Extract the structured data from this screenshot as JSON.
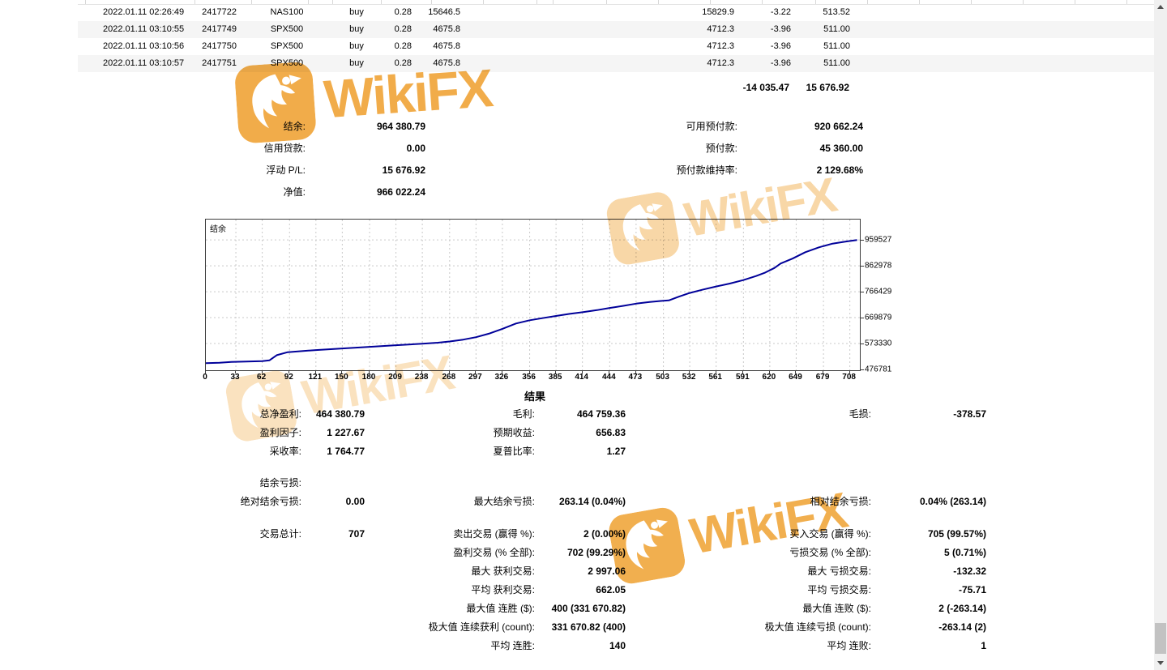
{
  "watermark": {
    "text": "WikiFX",
    "color": "#F0A63C"
  },
  "table": {
    "rows": [
      {
        "time": "2022.01.11 02:26:49",
        "ticket": "2417722",
        "symbol": "NAS100",
        "type": "buy",
        "volume": "0.28",
        "open_price": "15646.5",
        "close_price": "15829.9",
        "swap": "-3.22",
        "profit": "513.52"
      },
      {
        "time": "2022.01.11 03:10:55",
        "ticket": "2417749",
        "symbol": "SPX500",
        "type": "buy",
        "volume": "0.28",
        "open_price": "4675.8",
        "close_price": "4712.3",
        "swap": "-3.96",
        "profit": "511.00"
      },
      {
        "time": "2022.01.11 03:10:56",
        "ticket": "2417750",
        "symbol": "SPX500",
        "type": "buy",
        "volume": "0.28",
        "open_price": "4675.8",
        "close_price": "4712.3",
        "swap": "-3.96",
        "profit": "511.00"
      },
      {
        "time": "2022.01.11 03:10:57",
        "ticket": "2417751",
        "symbol": "SPX500",
        "type": "buy",
        "volume": "0.28",
        "open_price": "4675.8",
        "close_price": "4712.3",
        "swap": "-3.96",
        "profit": "511.00"
      }
    ],
    "totals": {
      "col1": "-14 035.47",
      "col2": "15 676.92"
    }
  },
  "summary": {
    "rows": [
      {
        "left": {
          "label": "结余:",
          "value": "964 380.79"
        },
        "right": {
          "label": "可用预付款:",
          "value": "920 662.24"
        }
      },
      {
        "left": {
          "label": "信用贷款:",
          "value": "0.00"
        },
        "right": {
          "label": "预付款:",
          "value": "45 360.00"
        }
      },
      {
        "left": {
          "label": "浮动 P/L:",
          "value": "15 676.92"
        },
        "right": {
          "label": "预付款维持率:",
          "value": "2 129.68%"
        }
      },
      {
        "left": {
          "label": "净值:",
          "value": "966 022.24"
        }
      }
    ]
  },
  "chart_data": {
    "type": "line",
    "title": "结余",
    "xlabel": "",
    "ylabel": "",
    "legend": "none",
    "grid": true,
    "line_color": "#000099",
    "xlim": [
      0,
      719
    ],
    "ylim": [
      473700,
      1035600
    ],
    "x_ticks": [
      0,
      33,
      62,
      92,
      121,
      150,
      180,
      209,
      238,
      268,
      297,
      326,
      356,
      385,
      414,
      444,
      473,
      503,
      532,
      561,
      591,
      620,
      649,
      679,
      708
    ],
    "y_ticks": [
      959527,
      862978,
      766429,
      669879,
      573330,
      476781
    ],
    "points": [
      [
        0,
        500000
      ],
      [
        15,
        501500
      ],
      [
        28,
        504500
      ],
      [
        45,
        506000
      ],
      [
        62,
        507500
      ],
      [
        70,
        511000
      ],
      [
        78,
        530000
      ],
      [
        90,
        541000
      ],
      [
        121,
        549000
      ],
      [
        150,
        555000
      ],
      [
        180,
        561000
      ],
      [
        209,
        567000
      ],
      [
        238,
        572500
      ],
      [
        255,
        576500
      ],
      [
        268,
        581000
      ],
      [
        283,
        588000
      ],
      [
        297,
        597000
      ],
      [
        311,
        610000
      ],
      [
        326,
        628000
      ],
      [
        341,
        648000
      ],
      [
        356,
        660000
      ],
      [
        370,
        668000
      ],
      [
        385,
        676000
      ],
      [
        400,
        684000
      ],
      [
        414,
        690000
      ],
      [
        430,
        698000
      ],
      [
        444,
        706000
      ],
      [
        459,
        714000
      ],
      [
        473,
        722000
      ],
      [
        488,
        728000
      ],
      [
        500,
        732000
      ],
      [
        509,
        734000
      ],
      [
        520,
        748000
      ],
      [
        532,
        762000
      ],
      [
        547,
        775000
      ],
      [
        561,
        786000
      ],
      [
        576,
        797000
      ],
      [
        591,
        810000
      ],
      [
        605,
        825000
      ],
      [
        615,
        838000
      ],
      [
        625,
        855000
      ],
      [
        632,
        872000
      ],
      [
        645,
        890000
      ],
      [
        659,
        914000
      ],
      [
        674,
        932000
      ],
      [
        689,
        946000
      ],
      [
        703,
        953000
      ],
      [
        716,
        959527
      ]
    ]
  },
  "results": {
    "title": "结果",
    "sections": [
      {
        "rows": [
          [
            {
              "c": 1,
              "label": "总净盈利:",
              "value": "464 380.79"
            },
            {
              "c": 2,
              "label": "毛利:",
              "value": "464 759.36"
            },
            {
              "c": 3,
              "label": "毛损:",
              "value": "-378.57"
            }
          ],
          [
            {
              "c": 1,
              "label": "盈利因子:",
              "value": "1 227.67"
            },
            {
              "c": 2,
              "label": "预期收益:",
              "value": "656.83"
            }
          ],
          [
            {
              "c": 1,
              "label": "采收率:",
              "value": "1 764.77"
            },
            {
              "c": 2,
              "label": "夏普比率:",
              "value": "1.27"
            }
          ]
        ]
      },
      {
        "rows": [
          [
            {
              "c": 1,
              "label": "结余亏损:",
              "value": ""
            }
          ],
          [
            {
              "c": 1,
              "label": "绝对结余亏损:",
              "value": "0.00"
            },
            {
              "c": 2,
              "label": "最大结余亏损:",
              "value": "263.14 (0.04%)"
            },
            {
              "c": 3,
              "label": "相对结余亏损:",
              "value": "0.04% (263.14)"
            }
          ]
        ]
      },
      {
        "rows": [
          [
            {
              "c": 1,
              "label": "交易总计:",
              "value": "707"
            },
            {
              "c": 2,
              "label": "卖出交易 (赢得 %):",
              "value": "2 (0.00%)"
            },
            {
              "c": 3,
              "label": "买入交易 (赢得 %):",
              "value": "705 (99.57%)"
            }
          ],
          [
            {
              "c": 2,
              "label": "盈利交易 (% 全部):",
              "value": "702 (99.29%)"
            },
            {
              "c": 3,
              "label": "亏损交易 (% 全部):",
              "value": "5 (0.71%)"
            }
          ],
          [
            {
              "c": 2,
              "label": "最大 获利交易:",
              "value": "2 997.06"
            },
            {
              "c": 3,
              "label": "最大 亏损交易:",
              "value": "-132.32"
            }
          ],
          [
            {
              "c": 2,
              "label": "平均 获利交易:",
              "value": "662.05"
            },
            {
              "c": 3,
              "label": "平均 亏损交易:",
              "value": "-75.71"
            }
          ],
          [
            {
              "c": 2,
              "label": "最大值 连胜 ($):",
              "value": "400 (331 670.82)"
            },
            {
              "c": 3,
              "label": "最大值 连败 ($):",
              "value": "2 (-263.14)"
            }
          ],
          [
            {
              "c": 2,
              "label": "极大值 连续获利 (count):",
              "value": "331 670.82 (400)"
            },
            {
              "c": 3,
              "label": "极大值 连续亏损 (count):",
              "value": "-263.14 (2)"
            }
          ],
          [
            {
              "c": 2,
              "label": "平均 连胜:",
              "value": "140"
            },
            {
              "c": 3,
              "label": "平均 连败:",
              "value": "1"
            }
          ]
        ]
      }
    ]
  }
}
